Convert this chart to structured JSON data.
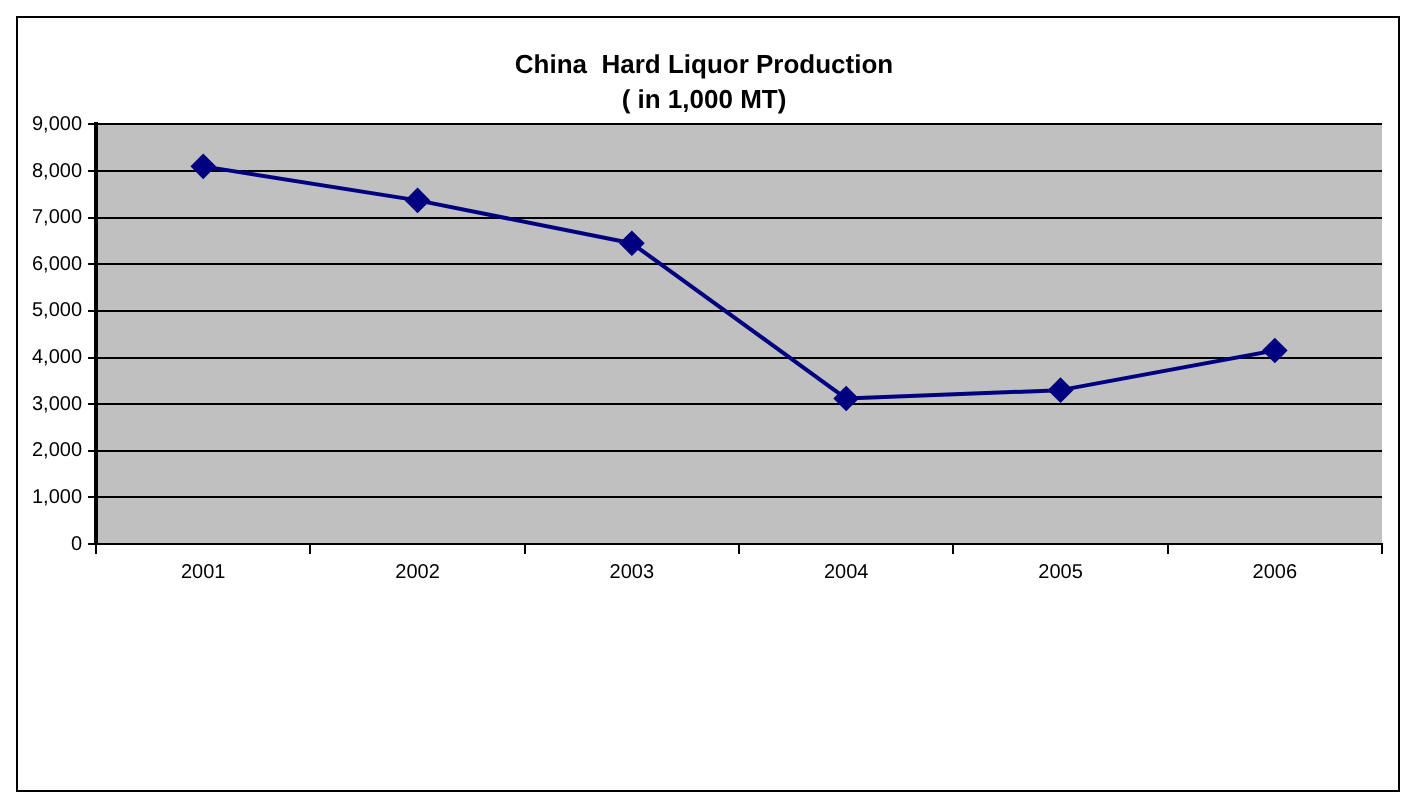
{
  "chart_data": {
    "type": "line",
    "title": "China  Hard Liquor Production",
    "subtitle": "( in 1,000 MT)",
    "categories": [
      "2001",
      "2002",
      "2003",
      "2004",
      "2005",
      "2006"
    ],
    "series": [
      {
        "color": "#000080",
        "values": [
          8100,
          7370,
          6450,
          3120,
          3300,
          4150
        ]
      }
    ],
    "ylim": [
      0,
      9000
    ],
    "yticks": [
      {
        "value": 0,
        "label": "0"
      },
      {
        "value": 1000,
        "label": "1,000"
      },
      {
        "value": 2000,
        "label": "2,000"
      },
      {
        "value": 3000,
        "label": "3,000"
      },
      {
        "value": 4000,
        "label": "4,000"
      },
      {
        "value": 5000,
        "label": "5,000"
      },
      {
        "value": 6000,
        "label": "6,000"
      },
      {
        "value": 7000,
        "label": "7,000"
      },
      {
        "value": 8000,
        "label": "8,000"
      },
      {
        "value": 9000,
        "label": "9,000"
      }
    ],
    "grid": "y",
    "legend": false,
    "marker": "diamond",
    "line_style": "solid"
  }
}
